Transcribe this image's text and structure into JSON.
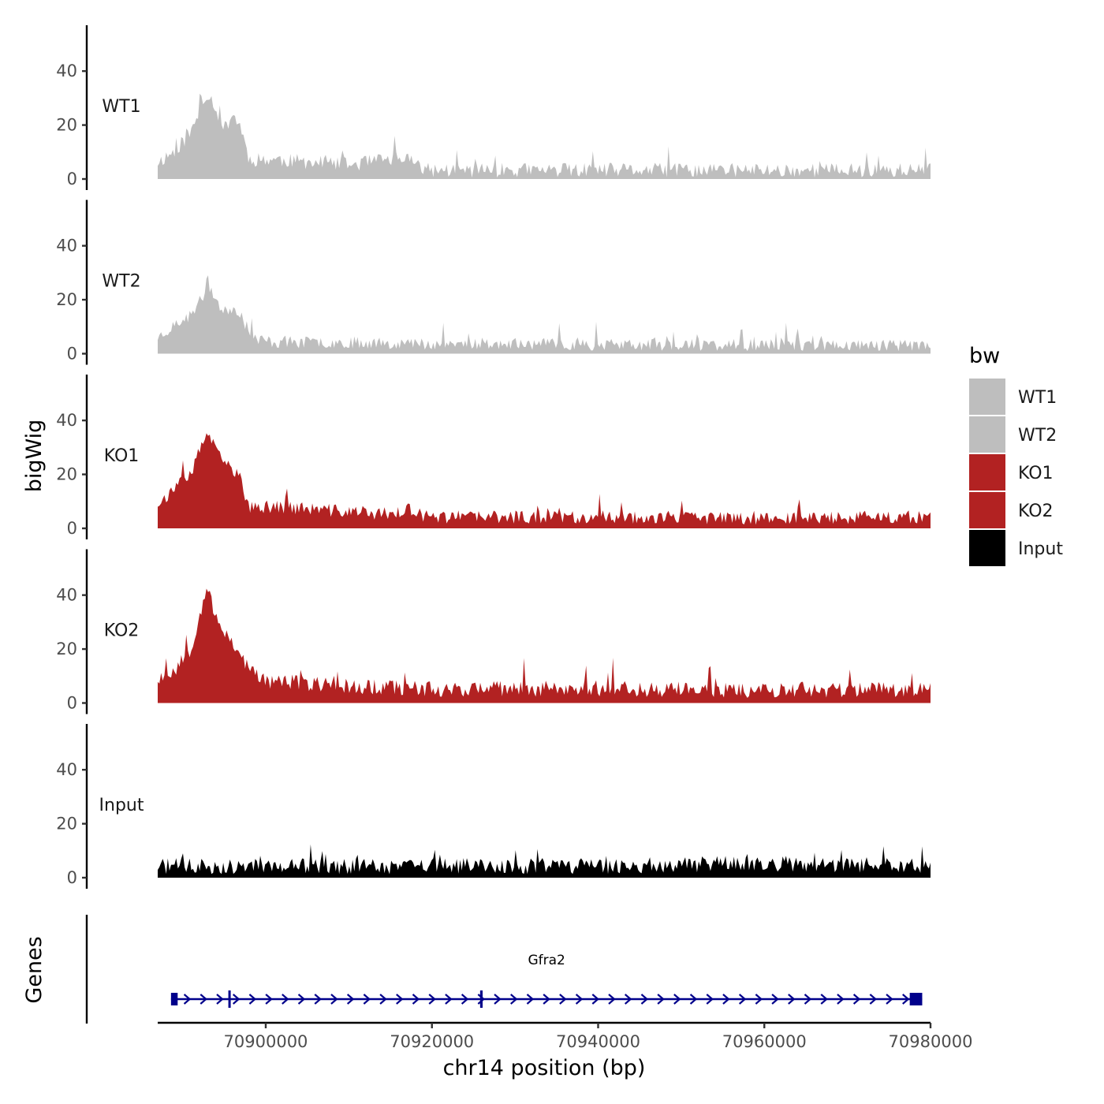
{
  "chart_data": {
    "type": "area",
    "title": "",
    "xlabel": "chr14 position (bp)",
    "ylabel": "bigWig",
    "genes_label": "Genes",
    "legend_title": "bw",
    "xlim": [
      70887000,
      70980000
    ],
    "x_ticks": [
      70900000,
      70920000,
      70940000,
      70960000,
      70980000
    ],
    "x_tick_labels": [
      "70900000",
      "70920000",
      "70940000",
      "70960000",
      "70980000"
    ],
    "y_range": [
      0,
      57
    ],
    "y_ticks": [
      0,
      20,
      40
    ],
    "y_tick_labels": [
      "0",
      "20",
      "40"
    ],
    "series": [
      {
        "name": "WT1",
        "color": "#BEBEBE",
        "seed": 11,
        "base": 3.5,
        "noise": 5.5,
        "profile": [
          [
            70887000,
            6
          ],
          [
            70889000,
            10
          ],
          [
            70891000,
            17
          ],
          [
            70893000,
            32
          ],
          [
            70894000,
            26
          ],
          [
            70895000,
            18
          ],
          [
            70896000,
            24
          ],
          [
            70897000,
            19
          ],
          [
            70898000,
            7
          ],
          [
            70901000,
            7
          ],
          [
            70905000,
            6
          ],
          [
            70910000,
            5
          ],
          [
            70915000,
            7
          ],
          [
            70918000,
            7
          ],
          [
            70919000,
            3
          ],
          [
            70925000,
            3
          ],
          [
            70940000,
            3
          ],
          [
            70960000,
            3
          ],
          [
            70970000,
            3
          ],
          [
            70980000,
            3
          ]
        ]
      },
      {
        "name": "WT2",
        "color": "#BEBEBE",
        "seed": 23,
        "base": 3,
        "noise": 4.5,
        "profile": [
          [
            70887000,
            6
          ],
          [
            70889000,
            10
          ],
          [
            70891000,
            14
          ],
          [
            70893000,
            24
          ],
          [
            70894000,
            20
          ],
          [
            70895000,
            15
          ],
          [
            70896000,
            17
          ],
          [
            70897000,
            15
          ],
          [
            70898000,
            6
          ],
          [
            70901000,
            4
          ],
          [
            70910000,
            4
          ],
          [
            70920000,
            3.5
          ],
          [
            70950000,
            3
          ],
          [
            70980000,
            3
          ]
        ]
      },
      {
        "name": "KO1",
        "color": "#B22222",
        "seed": 37,
        "base": 3.5,
        "noise": 5,
        "profile": [
          [
            70887000,
            9
          ],
          [
            70889000,
            14
          ],
          [
            70891000,
            20
          ],
          [
            70893000,
            36
          ],
          [
            70894000,
            28
          ],
          [
            70895000,
            24
          ],
          [
            70896000,
            22
          ],
          [
            70897000,
            18
          ],
          [
            70898000,
            7
          ],
          [
            70901000,
            8
          ],
          [
            70905000,
            7
          ],
          [
            70910000,
            6
          ],
          [
            70915000,
            5
          ],
          [
            70917000,
            7
          ],
          [
            70919000,
            4
          ],
          [
            70925000,
            4
          ],
          [
            70940000,
            4
          ],
          [
            70960000,
            3.5
          ],
          [
            70980000,
            4
          ]
        ]
      },
      {
        "name": "KO2",
        "color": "#B22222",
        "seed": 53,
        "base": 4,
        "noise": 6,
        "profile": [
          [
            70887000,
            9
          ],
          [
            70889000,
            12
          ],
          [
            70891000,
            20
          ],
          [
            70893000,
            44
          ],
          [
            70894000,
            30
          ],
          [
            70895000,
            27
          ],
          [
            70896000,
            22
          ],
          [
            70897000,
            18
          ],
          [
            70898000,
            12
          ],
          [
            70900000,
            8
          ],
          [
            70905000,
            7
          ],
          [
            70910000,
            6
          ],
          [
            70920000,
            5
          ],
          [
            70940000,
            5
          ],
          [
            70960000,
            4.5
          ],
          [
            70980000,
            5
          ]
        ]
      },
      {
        "name": "Input",
        "color": "#000000",
        "seed": 71,
        "base": 3.5,
        "noise": 6,
        "profile": [
          [
            70887000,
            4
          ],
          [
            70920000,
            4
          ],
          [
            70940000,
            4
          ],
          [
            70960000,
            5
          ],
          [
            70980000,
            4
          ]
        ]
      }
    ],
    "legend": [
      {
        "label": "WT1",
        "color": "#BEBEBE"
      },
      {
        "label": "WT2",
        "color": "#BEBEBE"
      },
      {
        "label": "KO1",
        "color": "#B22222"
      },
      {
        "label": "KO2",
        "color": "#B22222"
      },
      {
        "label": "Input",
        "color": "#000000"
      }
    ],
    "gene": {
      "name": "Gfra2",
      "color": "#00008B",
      "start": 70888600,
      "end": 70979000,
      "strand": "+",
      "exons": [
        [
          70888600,
          70889400
        ],
        [
          70895500,
          70895700
        ],
        [
          70925800,
          70926100
        ],
        [
          70977500,
          70979000
        ]
      ]
    }
  }
}
